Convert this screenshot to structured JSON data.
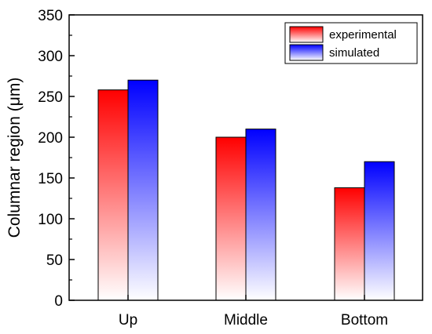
{
  "chart_data": {
    "type": "bar",
    "categories": [
      "Up",
      "Middle",
      "Bottom"
    ],
    "series": [
      {
        "name": "experimental",
        "values": [
          258,
          200,
          138
        ],
        "color": "#ff0000"
      },
      {
        "name": "simulated",
        "values": [
          270,
          210,
          170
        ],
        "color": "#0000ff"
      }
    ],
    "title": "",
    "xlabel": "",
    "ylabel": "Columnar region (μm)",
    "ylim": [
      0,
      350
    ],
    "yticks": [
      0,
      50,
      100,
      150,
      200,
      250,
      300,
      350
    ],
    "legend_position": "top-right",
    "grid": false
  }
}
